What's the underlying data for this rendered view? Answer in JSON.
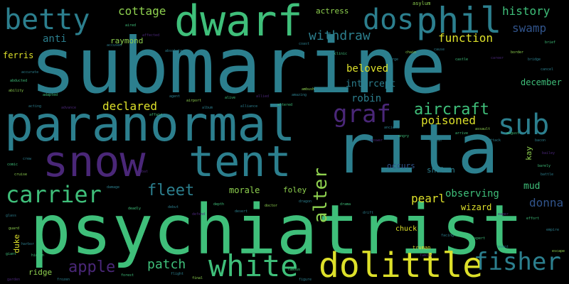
{
  "colors": {
    "background": "#000000",
    "teal": "#2c7f8e",
    "green": "#3fbf7a",
    "purple": "#4a2778",
    "yellow": "#dde02a",
    "lime": "#8fd14f",
    "blue": "#31548c"
  },
  "words": {
    "submarine": "submarine",
    "psychiatrist": "psychiatrist",
    "rita": "rita",
    "paranormal": "paranormal",
    "dwarf": "dwarf",
    "snow": "snow",
    "tent": "tent",
    "dolittle": "dolittle",
    "white": "white",
    "betty": "betty",
    "phil": "phil",
    "dos": "dos",
    "carrier": "carrier",
    "graf": "graf",
    "sub": "sub",
    "fisher": "fisher",
    "aircraft": "aircraft",
    "alter": "alter",
    "fleet": "fleet",
    "apple": "apple",
    "patch": "patch",
    "cottage": "cottage",
    "history": "history",
    "swamp": "swamp",
    "withdraw": "withdraw",
    "function": "function",
    "anti": "anti",
    "raymond": "raymond",
    "ferris": "ferris",
    "beloved": "beloved",
    "intercept": "intercept",
    "robin": "robin",
    "declared": "declared",
    "poisoned": "poisoned",
    "december": "december",
    "pearl": "pearl",
    "observing": "observing",
    "mud": "mud",
    "donna": "donna",
    "wizard": "wizard",
    "morale": "morale",
    "foley": "foley",
    "shaken": "shaken",
    "occurs": "occurs",
    "kay": "kay",
    "duke": "duke",
    "ridge": "ridge",
    "chuck": "chuck",
    "truman": "truman",
    "actress": "actress",
    "asylum": "asylum"
  },
  "small_words": [
    "accused",
    "aired",
    "affected",
    "absolute",
    "abducted",
    "accurate",
    "ability",
    "acting",
    "adapted",
    "advance",
    "affair",
    "agent",
    "airport",
    "album",
    "alive",
    "alliance",
    "allied",
    "altered",
    "amazing",
    "ambush",
    "ancient",
    "angry",
    "answer",
    "appear",
    "arrive",
    "assault",
    "attack",
    "august",
    "bacon",
    "bailey",
    "barely",
    "battle",
    "border",
    "bridge",
    "brief",
    "cancel",
    "career",
    "castle",
    "cause",
    "chain",
    "charge",
    "clinic",
    "coast",
    "combat",
    "comic",
    "crew",
    "cruise",
    "damage",
    "deadly",
    "debut",
    "defend",
    "depth",
    "desert",
    "doctor",
    "dragon",
    "drama",
    "drift",
    "eager",
    "effort",
    "empire",
    "escape",
    "event",
    "expert",
    "facing",
    "family",
    "famous",
    "figure",
    "final",
    "flight",
    "forest",
    "frozen",
    "garden",
    "giant",
    "glass",
    "guard",
    "harbor",
    "hidden"
  ]
}
